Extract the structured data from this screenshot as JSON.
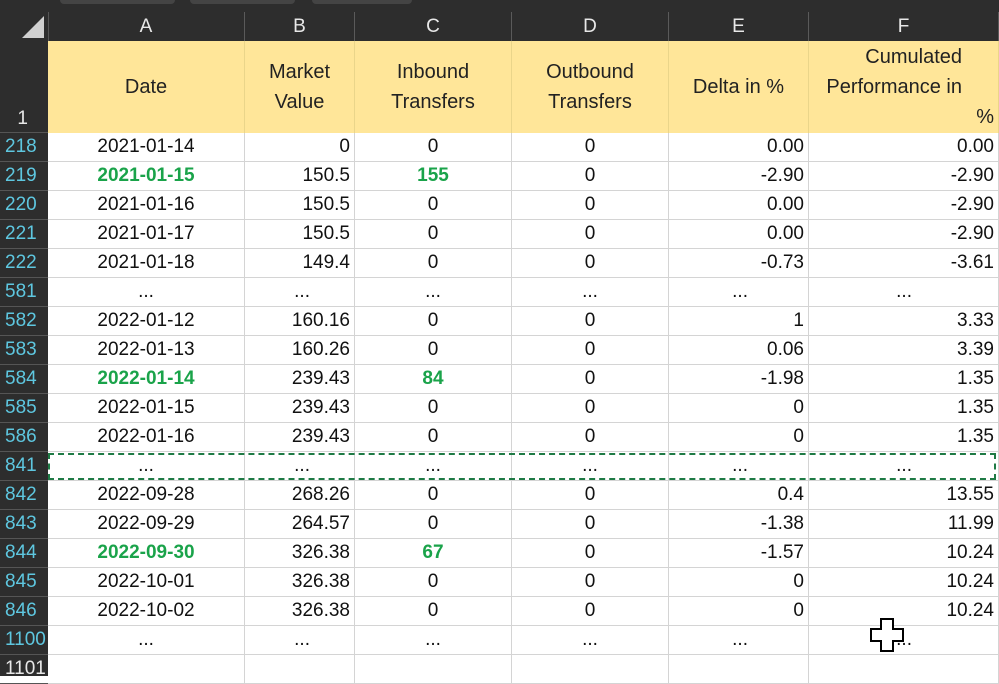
{
  "columns": [
    "A",
    "B",
    "C",
    "D",
    "E",
    "F"
  ],
  "header_row_num": "1",
  "headers": {
    "A": [
      "Date"
    ],
    "B": [
      "Market",
      "Value"
    ],
    "C": [
      "Inbound",
      "Transfers"
    ],
    "D": [
      "Outbound",
      "Transfers"
    ],
    "E": [
      "Delta in %"
    ],
    "F": [
      "Cumulated",
      "Performance in",
      "%"
    ]
  },
  "rows": [
    {
      "num": "218",
      "date": "2021-01-14",
      "mv": "0",
      "in": "0",
      "out": "0",
      "delta": "0.00",
      "cum": "0.00",
      "hl": false
    },
    {
      "num": "219",
      "date": "2021-01-15",
      "mv": "150.5",
      "in": "155",
      "out": "0",
      "delta": "-2.90",
      "cum": "-2.90",
      "hl": true
    },
    {
      "num": "220",
      "date": "2021-01-16",
      "mv": "150.5",
      "in": "0",
      "out": "0",
      "delta": "0.00",
      "cum": "-2.90",
      "hl": false
    },
    {
      "num": "221",
      "date": "2021-01-17",
      "mv": "150.5",
      "in": "0",
      "out": "0",
      "delta": "0.00",
      "cum": "-2.90",
      "hl": false
    },
    {
      "num": "222",
      "date": "2021-01-18",
      "mv": "149.4",
      "in": "0",
      "out": "0",
      "delta": "-0.73",
      "cum": "-3.61",
      "hl": false
    },
    {
      "num": "581",
      "date": "...",
      "mv": "...",
      "in": "...",
      "out": "...",
      "delta": "...",
      "cum": "...",
      "hl": false,
      "ellipsis": true
    },
    {
      "num": "582",
      "date": "2022-01-12",
      "mv": "160.16",
      "in": "0",
      "out": "0",
      "delta": "1",
      "cum": "3.33",
      "hl": false
    },
    {
      "num": "583",
      "date": "2022-01-13",
      "mv": "160.26",
      "in": "0",
      "out": "0",
      "delta": "0.06",
      "cum": "3.39",
      "hl": false
    },
    {
      "num": "584",
      "date": "2022-01-14",
      "mv": "239.43",
      "in": "84",
      "out": "0",
      "delta": "-1.98",
      "cum": "1.35",
      "hl": true
    },
    {
      "num": "585",
      "date": "2022-01-15",
      "mv": "239.43",
      "in": "0",
      "out": "0",
      "delta": "0",
      "cum": "1.35",
      "hl": false
    },
    {
      "num": "586",
      "date": "2022-01-16",
      "mv": "239.43",
      "in": "0",
      "out": "0",
      "delta": "0",
      "cum": "1.35",
      "hl": false
    },
    {
      "num": "841",
      "date": "...",
      "mv": "...",
      "in": "...",
      "out": "...",
      "delta": "...",
      "cum": "...",
      "hl": false,
      "ellipsis": true,
      "selected": true
    },
    {
      "num": "842",
      "date": "2022-09-28",
      "mv": "268.26",
      "in": "0",
      "out": "0",
      "delta": "0.4",
      "cum": "13.55",
      "hl": false
    },
    {
      "num": "843",
      "date": "2022-09-29",
      "mv": "264.57",
      "in": "0",
      "out": "0",
      "delta": "-1.38",
      "cum": "11.99",
      "hl": false
    },
    {
      "num": "844",
      "date": "2022-09-30",
      "mv": "326.38",
      "in": "67",
      "out": "0",
      "delta": "-1.57",
      "cum": "10.24",
      "hl": true
    },
    {
      "num": "845",
      "date": "2022-10-01",
      "mv": "326.38",
      "in": "0",
      "out": "0",
      "delta": "0",
      "cum": "10.24",
      "hl": false
    },
    {
      "num": "846",
      "date": "2022-10-02",
      "mv": "326.38",
      "in": "0",
      "out": "0",
      "delta": "0",
      "cum": "10.24",
      "hl": false
    },
    {
      "num": "1100",
      "date": "...",
      "mv": "...",
      "in": "...",
      "out": "...",
      "delta": "...",
      "cum": "...",
      "hl": false,
      "ellipsis": true
    },
    {
      "num": "1101",
      "date": "",
      "mv": "",
      "in": "",
      "out": "",
      "delta": "",
      "cum": "",
      "hl": false
    }
  ],
  "colors": {
    "highlight": "#1aa34a",
    "header_fill": "#ffe699",
    "row_number": "#5ec7e0",
    "selection": "#1f7a45"
  },
  "cursor_icon": "excel-cross-cursor-icon"
}
